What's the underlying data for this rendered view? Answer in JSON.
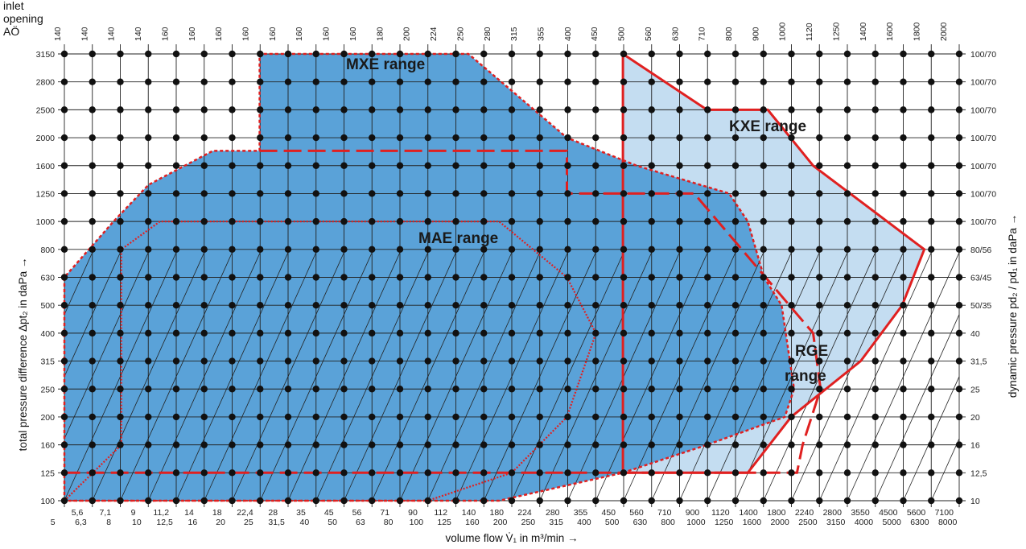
{
  "chart_data": {
    "type": "scatter",
    "title": "",
    "corner_label": [
      "inlet",
      "opening",
      "AÖ"
    ],
    "xlabel": "volume flow  V̇₁  in m³/min →",
    "ylabel": "total pressure difference  Δpt₂  in daPa →",
    "ylabel_right": "dynamic pressure  pd₂ / pd₁  in daPa →",
    "inlet_opening": [
      "140",
      "140",
      "140",
      "140",
      "160",
      "160",
      "160",
      "160",
      "160",
      "160",
      "160",
      "160",
      "180",
      "200",
      "224",
      "250",
      "280",
      "315",
      "355",
      "400",
      "450",
      "500",
      "560",
      "630",
      "710",
      "800",
      "900",
      "1000",
      "1120",
      "1250",
      "1400",
      "1600",
      "1800",
      "2000"
    ],
    "x_ticks_top_row": [
      "5,6",
      "7,1",
      "9",
      "11,2",
      "14",
      "18",
      "22,4",
      "28",
      "35",
      "45",
      "56",
      "71",
      "90",
      "112",
      "140",
      "180",
      "224",
      "280",
      "355",
      "450",
      "560",
      "710",
      "900",
      "1120",
      "1400",
      "1800",
      "2240",
      "2800",
      "3550",
      "4500",
      "5600",
      "7100"
    ],
    "x_ticks_bottom_row": [
      "5",
      "6,3",
      "8",
      "10",
      "12,5",
      "16",
      "20",
      "25",
      "31,5",
      "40",
      "50",
      "63",
      "80",
      "100",
      "125",
      "160",
      "200",
      "250",
      "315",
      "400",
      "500",
      "630",
      "800",
      "1000",
      "1250",
      "1600",
      "2000",
      "2500",
      "3150",
      "4000",
      "5000",
      "6300",
      "8000"
    ],
    "y_ticks": [
      "100",
      "125",
      "160",
      "200",
      "250",
      "315",
      "400",
      "500",
      "630",
      "800",
      "1000",
      "1250",
      "1600",
      "2000",
      "2500",
      "2800",
      "3150"
    ],
    "y_ticks_right": [
      "10",
      "12,5",
      "16",
      "20",
      "25",
      "31,5",
      "40",
      "50/35",
      "63/45",
      "80/56",
      "100/70",
      "100/70",
      "100/70",
      "100/70",
      "100/70",
      "100/70",
      "100/70"
    ],
    "grid": true,
    "series": [
      {
        "name": "MXE range",
        "points": [
          [
            5,
            100
          ],
          [
            5,
            630
          ],
          [
            7.5,
            1000
          ],
          [
            10,
            1350
          ],
          [
            17,
            1800
          ],
          [
            25,
            1800
          ],
          [
            25,
            3150
          ],
          [
            140,
            3150
          ],
          [
            315,
            2000
          ],
          [
            560,
            1600
          ],
          [
            1200,
            1250
          ],
          [
            1400,
            1000
          ],
          [
            1600,
            630
          ],
          [
            1850,
            500
          ],
          [
            2050,
            250
          ],
          [
            1900,
            200
          ],
          [
            1000,
            160
          ],
          [
            500,
            125
          ],
          [
            180,
            100
          ]
        ]
      },
      {
        "name": "KXE range",
        "points": [
          [
            500,
            3150
          ],
          [
            1000,
            2500
          ],
          [
            1650,
            2500
          ],
          [
            2400,
            1600
          ],
          [
            6000,
            800
          ],
          [
            5000,
            500
          ],
          [
            3550,
            315
          ],
          [
            2000,
            200
          ],
          [
            1400,
            125
          ],
          [
            500,
            125
          ]
        ]
      },
      {
        "name": "MAE range",
        "points": [
          [
            8,
            160
          ],
          [
            8,
            800
          ],
          [
            11,
            1000
          ],
          [
            180,
            1000
          ],
          [
            315,
            630
          ],
          [
            400,
            400
          ],
          [
            315,
            200
          ],
          [
            200,
            125
          ],
          [
            100,
            100
          ],
          [
            5,
            100
          ]
        ]
      },
      {
        "name": "RGE range",
        "points": [
          [
            25,
            1800
          ],
          [
            315,
            1800
          ],
          [
            315,
            1250
          ],
          [
            900,
            1250
          ],
          [
            2400,
            400
          ],
          [
            2550,
            250
          ],
          [
            2200,
            160
          ],
          [
            2100,
            125
          ],
          [
            5,
            125
          ]
        ]
      }
    ],
    "colors": {
      "mxe_fill": "#5aa2d8",
      "kxe_fill": "#c4ddf1",
      "boundary": "#e02020",
      "grid": "#222222",
      "dot": "#111111"
    }
  }
}
